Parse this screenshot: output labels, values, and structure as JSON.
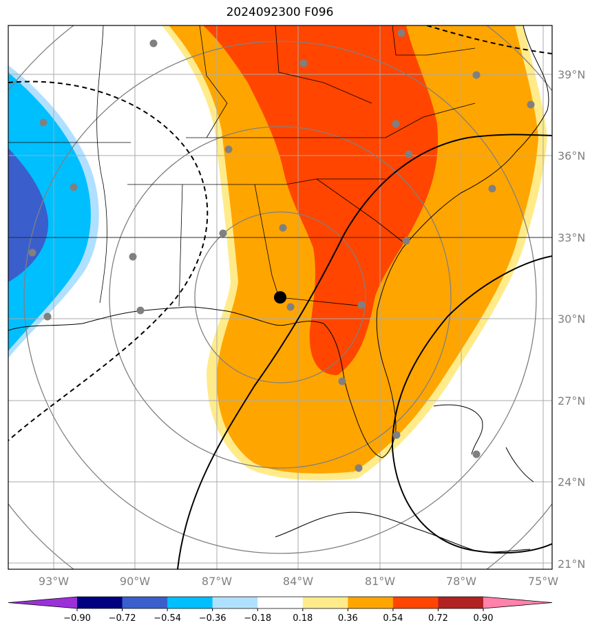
{
  "title": "2024092300 F096",
  "lat_labels": [
    "39°N",
    "36°N",
    "33°N",
    "30°N",
    "27°N",
    "24°N",
    "21°N"
  ],
  "lon_labels": [
    "93°W",
    "90°W",
    "87°W",
    "84°W",
    "81°W",
    "78°W",
    "75°W"
  ],
  "colorbar": {
    "ticks": [
      "−0.90",
      "−0.72",
      "−0.54",
      "−0.36",
      "−0.18",
      "0.18",
      "0.36",
      "0.54",
      "0.72",
      "0.90"
    ],
    "colors": [
      "#9b30d9",
      "#000080",
      "#3a5fcd",
      "#00bfff",
      "#b0e0ff",
      "#ffffff",
      "#ffeb8a",
      "#ffa500",
      "#ff4500",
      "#b22222",
      "#ff82ab"
    ]
  },
  "colors": {
    "orange": "#ffa500",
    "red_orange": "#ff4500",
    "light_yellow": "#ffeb8a",
    "deep_sky_blue": "#00bfff",
    "royal_blue": "#3a5fcd",
    "light_blue": "#b0e0ff",
    "grid": "#aaaaaa",
    "station": "#808080"
  }
}
